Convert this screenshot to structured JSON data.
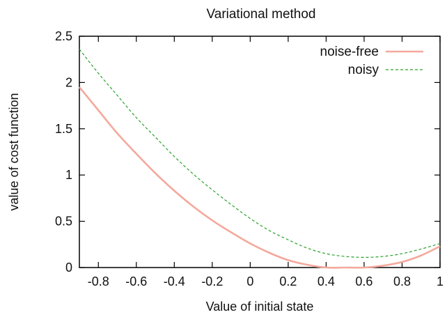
{
  "chart_data": {
    "type": "line",
    "title": "Variational method",
    "xlabel": "Value of initial state",
    "ylabel": "value of cost function",
    "xlim": [
      -0.9,
      1.0
    ],
    "ylim": [
      0,
      2.5
    ],
    "x_ticks": [
      -0.8,
      -0.6,
      -0.4,
      -0.2,
      0,
      0.2,
      0.4,
      0.6,
      0.8,
      1
    ],
    "x_tick_labels": [
      "-0.8",
      "-0.6",
      "-0.4",
      "-0.2",
      "0",
      "0.2",
      "0.4",
      "0.6",
      "0.8",
      "1"
    ],
    "y_ticks": [
      0,
      0.5,
      1,
      1.5,
      2,
      2.5
    ],
    "y_tick_labels": [
      "0",
      "0.5",
      "1",
      "1.5",
      "2",
      "2.5"
    ],
    "grid": false,
    "legend_position": "top-right",
    "series": [
      {
        "name": "noise-free",
        "color": "#f4a89c",
        "style": "solid",
        "x": [
          -0.9,
          -0.8,
          -0.7,
          -0.6,
          -0.5,
          -0.4,
          -0.3,
          -0.2,
          -0.1,
          0.0,
          0.1,
          0.2,
          0.3,
          0.4,
          0.5,
          0.6,
          0.7,
          0.8,
          0.9,
          1.0
        ],
        "values": [
          1.95,
          1.7,
          1.45,
          1.23,
          1.02,
          0.83,
          0.66,
          0.51,
          0.38,
          0.26,
          0.16,
          0.08,
          0.03,
          0.0,
          0.0,
          0.0,
          0.02,
          0.06,
          0.13,
          0.23
        ]
      },
      {
        "name": "noisy",
        "color": "#2aa02a",
        "style": "dashed",
        "x": [
          -0.9,
          -0.8,
          -0.7,
          -0.6,
          -0.5,
          -0.4,
          -0.3,
          -0.2,
          -0.1,
          0.0,
          0.1,
          0.2,
          0.3,
          0.4,
          0.5,
          0.6,
          0.7,
          0.8,
          0.9,
          1.0
        ],
        "values": [
          2.36,
          2.1,
          1.86,
          1.62,
          1.41,
          1.2,
          1.01,
          0.84,
          0.68,
          0.53,
          0.4,
          0.3,
          0.21,
          0.15,
          0.12,
          0.11,
          0.12,
          0.15,
          0.2,
          0.26
        ]
      }
    ]
  }
}
